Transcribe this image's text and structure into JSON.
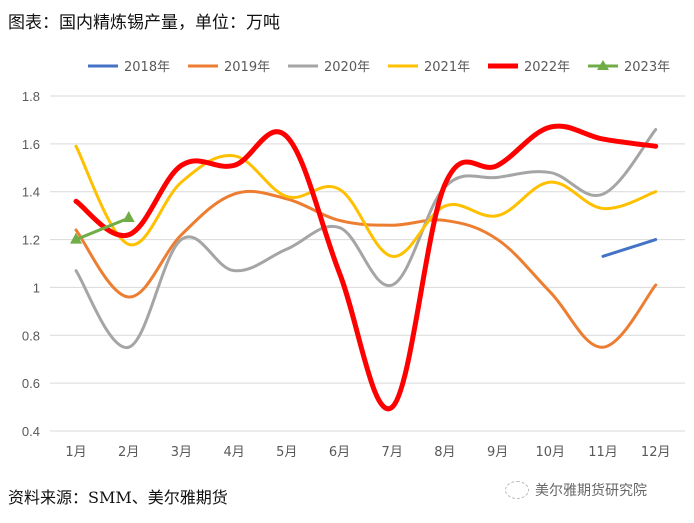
{
  "title": "图表：国内精炼锡产量，单位：万吨",
  "source": "资料来源：SMM、美尔雅期货",
  "watermark": "美尔雅期货研究院",
  "chart_data": {
    "type": "line",
    "title": "图表：国内精炼锡产量，单位：万吨",
    "xlabel": "",
    "ylabel": "",
    "categories": [
      "1月",
      "2月",
      "3月",
      "4月",
      "5月",
      "6月",
      "7月",
      "8月",
      "9月",
      "10月",
      "11月",
      "12月"
    ],
    "ylim": [
      0.4,
      1.8
    ],
    "yticks": [
      "0.4",
      "0.6",
      "0.8",
      "1",
      "1.2",
      "1.4",
      "1.6",
      "1.8"
    ],
    "grid": true,
    "legend": "top",
    "series": [
      {
        "name": "2018年",
        "color": "#4472C4",
        "width": 3,
        "values": [
          null,
          null,
          null,
          null,
          null,
          null,
          null,
          null,
          null,
          null,
          1.13,
          1.2
        ]
      },
      {
        "name": "2019年",
        "color": "#ED7D31",
        "width": 3,
        "values": [
          1.24,
          0.96,
          1.22,
          1.39,
          1.37,
          1.28,
          1.26,
          1.28,
          1.2,
          0.98,
          0.75,
          1.01
        ]
      },
      {
        "name": "2020年",
        "color": "#A5A5A5",
        "width": 3,
        "values": [
          1.07,
          0.75,
          1.2,
          1.07,
          1.16,
          1.25,
          1.01,
          1.42,
          1.46,
          1.48,
          1.39,
          1.66
        ]
      },
      {
        "name": "2021年",
        "color": "#FFC000",
        "width": 3,
        "values": [
          1.59,
          1.18,
          1.44,
          1.55,
          1.38,
          1.41,
          1.13,
          1.34,
          1.3,
          1.44,
          1.33,
          1.4
        ]
      },
      {
        "name": "2022年",
        "color": "#FF0000",
        "width": 5,
        "values": [
          1.36,
          1.22,
          1.51,
          1.51,
          1.63,
          1.06,
          0.5,
          1.43,
          1.51,
          1.67,
          1.62,
          1.59
        ]
      },
      {
        "name": "2023年",
        "color": "#70AD47",
        "width": 3,
        "marker": "triangle",
        "values": [
          1.2,
          1.29,
          null,
          null,
          null,
          null,
          null,
          null,
          null,
          null,
          null,
          null
        ]
      }
    ]
  }
}
